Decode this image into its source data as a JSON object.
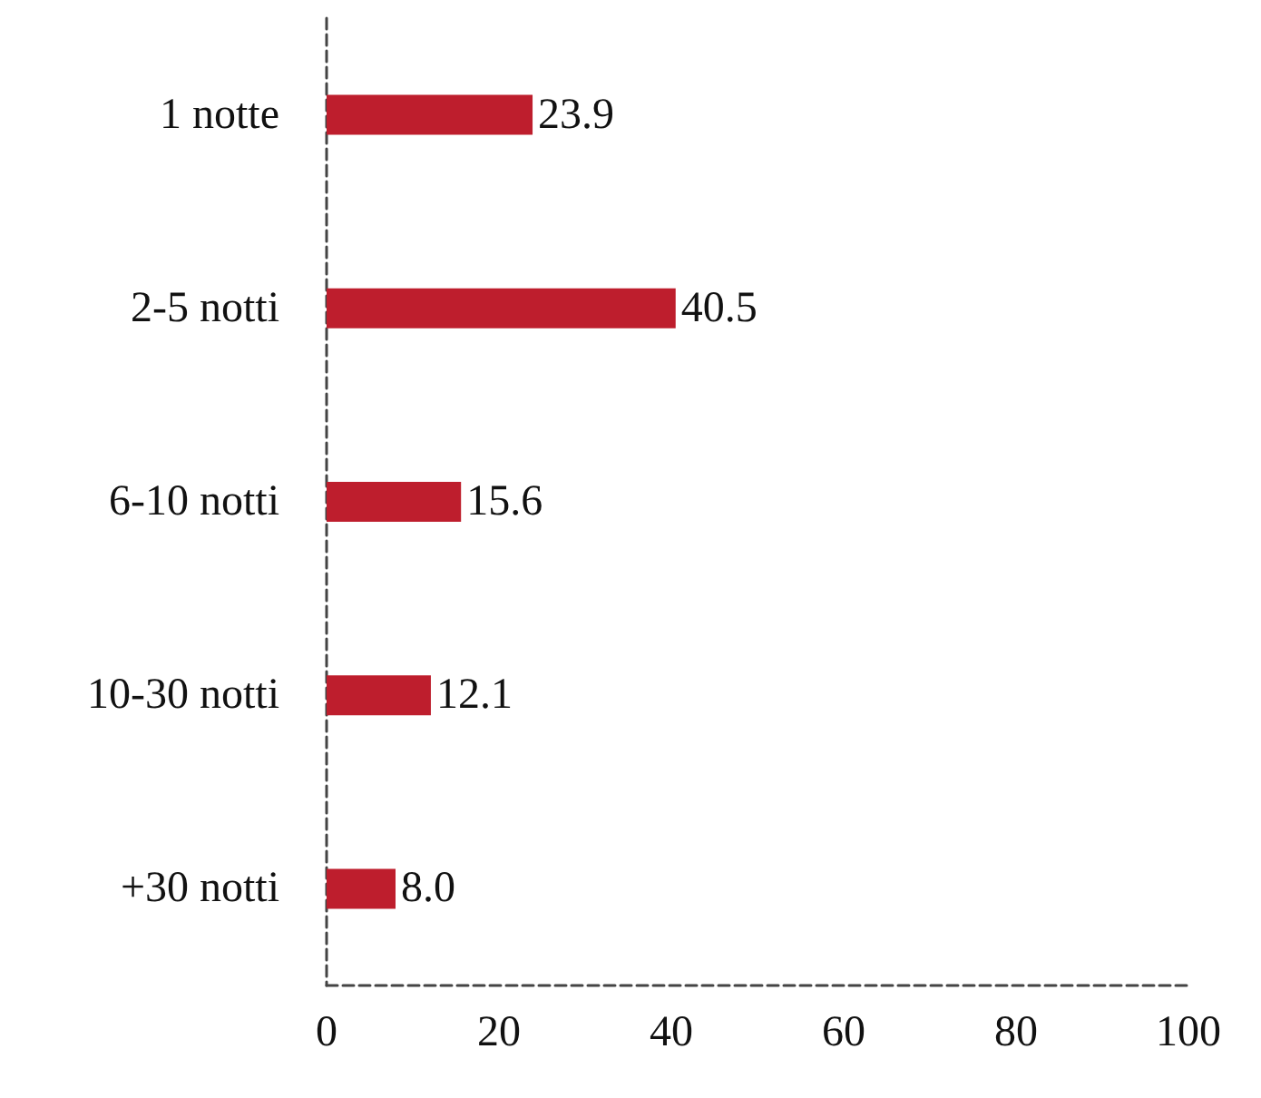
{
  "chart_data": {
    "type": "bar",
    "orientation": "horizontal",
    "categories": [
      "1 notte",
      "2-5 notti",
      "6-10 notti",
      "10-30 notti",
      "+30 notti"
    ],
    "values": [
      23.9,
      40.5,
      15.6,
      12.1,
      8.0
    ],
    "value_labels": [
      "23.9",
      "40.5",
      "15.6",
      "12.1",
      "8.0"
    ],
    "color": "#be1e2d",
    "xlim": [
      0,
      100
    ],
    "xticks": [
      0,
      20,
      40,
      60,
      80,
      100
    ]
  }
}
